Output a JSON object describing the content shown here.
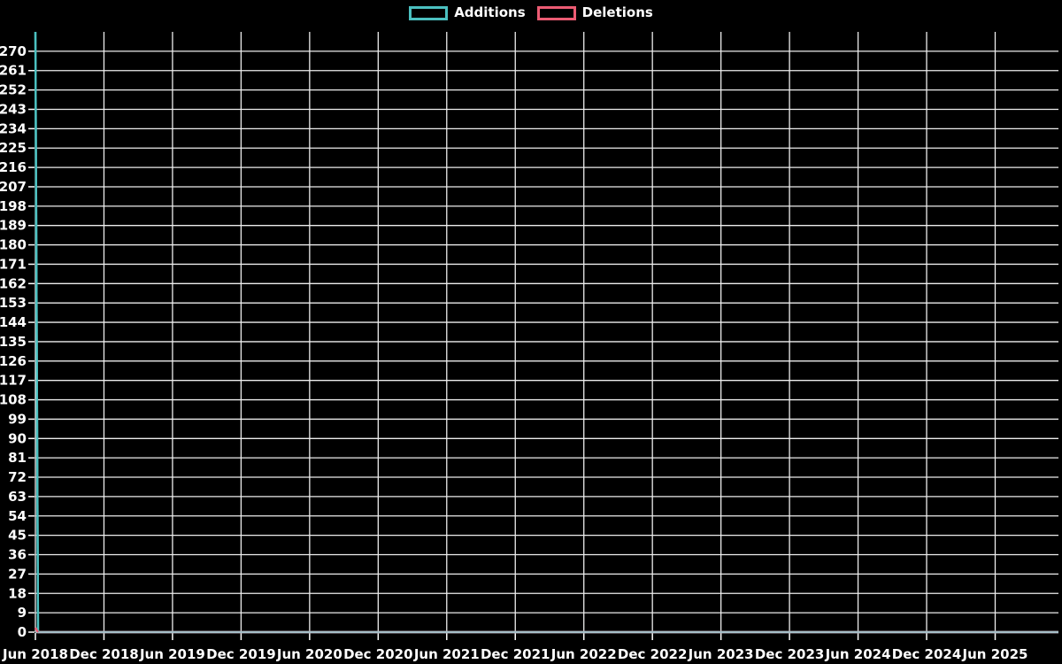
{
  "page": {
    "background": "#000000",
    "text_color": "#ffffff"
  },
  "chart_data": {
    "type": "line",
    "title": "",
    "legend": {
      "position": "top-center",
      "entries": [
        "Additions",
        "Deletions"
      ]
    },
    "x_axis": {
      "label": "",
      "unit": "weeks",
      "min": 0,
      "max": 388,
      "tick_interval_units": 26,
      "tick_labels": [
        "Jun 2018",
        "Dec 2018",
        "Jun 2019",
        "Dec 2019",
        "Jun 2020",
        "Dec 2020",
        "Jun 2021",
        "Dec 2021",
        "Jun 2022",
        "Dec 2022",
        "Jun 2023",
        "Dec 2023",
        "Jun 2024",
        "Dec 2024",
        "Jun 2025"
      ]
    },
    "y_axis": {
      "label": "",
      "min": 0,
      "max": 279,
      "tick_step": 9,
      "tick_labels": [
        0,
        9,
        18,
        27,
        36,
        45,
        54,
        63,
        72,
        81,
        90,
        99,
        108,
        117,
        126,
        135,
        144,
        153,
        162,
        171,
        180,
        189,
        198,
        207,
        216,
        225,
        234,
        243,
        252,
        261,
        270
      ]
    },
    "series": [
      {
        "name": "Additions",
        "color": "#4bc0c0",
        "points": [
          [
            0,
            279
          ],
          [
            1,
            0
          ],
          [
            388,
            0
          ]
        ]
      },
      {
        "name": "Deletions",
        "color": "#ec5b73",
        "points": [
          [
            0,
            2
          ],
          [
            1,
            0
          ],
          [
            388,
            0
          ]
        ]
      }
    ],
    "grid": {
      "show": true,
      "color": "#ededed"
    },
    "axis_baseline_color": "#a6bfc8",
    "tick_color": "#ffffff"
  }
}
